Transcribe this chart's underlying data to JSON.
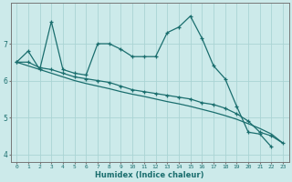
{
  "xlabel": "Humidex (Indice chaleur)",
  "bg_color": "#cceaea",
  "grid_color": "#aad4d4",
  "line_color": "#1a6e6e",
  "x_values": [
    0,
    1,
    2,
    3,
    4,
    5,
    6,
    7,
    8,
    9,
    10,
    11,
    12,
    13,
    14,
    15,
    16,
    17,
    18,
    19,
    20,
    21,
    22,
    23
  ],
  "line1": [
    6.5,
    6.8,
    6.3,
    7.6,
    6.3,
    6.2,
    6.15,
    7.0,
    7.0,
    6.85,
    6.65,
    6.65,
    6.65,
    7.3,
    7.45,
    7.75,
    7.15,
    6.4,
    6.05,
    5.3,
    4.6,
    4.55,
    4.2,
    null
  ],
  "line2": [
    6.5,
    6.5,
    6.35,
    6.3,
    6.2,
    6.1,
    6.05,
    6.0,
    5.95,
    5.85,
    5.75,
    5.7,
    5.65,
    5.6,
    5.55,
    5.5,
    5.4,
    5.35,
    5.25,
    5.1,
    4.9,
    4.6,
    4.5,
    4.3
  ],
  "line3": [
    6.5,
    6.4,
    6.3,
    6.2,
    6.1,
    6.0,
    5.92,
    5.85,
    5.78,
    5.7,
    5.63,
    5.57,
    5.5,
    5.43,
    5.37,
    5.3,
    5.22,
    5.14,
    5.05,
    4.95,
    4.83,
    4.7,
    4.55,
    4.3
  ],
  "ylim": [
    3.8,
    8.1
  ],
  "yticks": [
    4,
    5,
    6,
    7
  ],
  "xlim": [
    -0.5,
    23.5
  ]
}
